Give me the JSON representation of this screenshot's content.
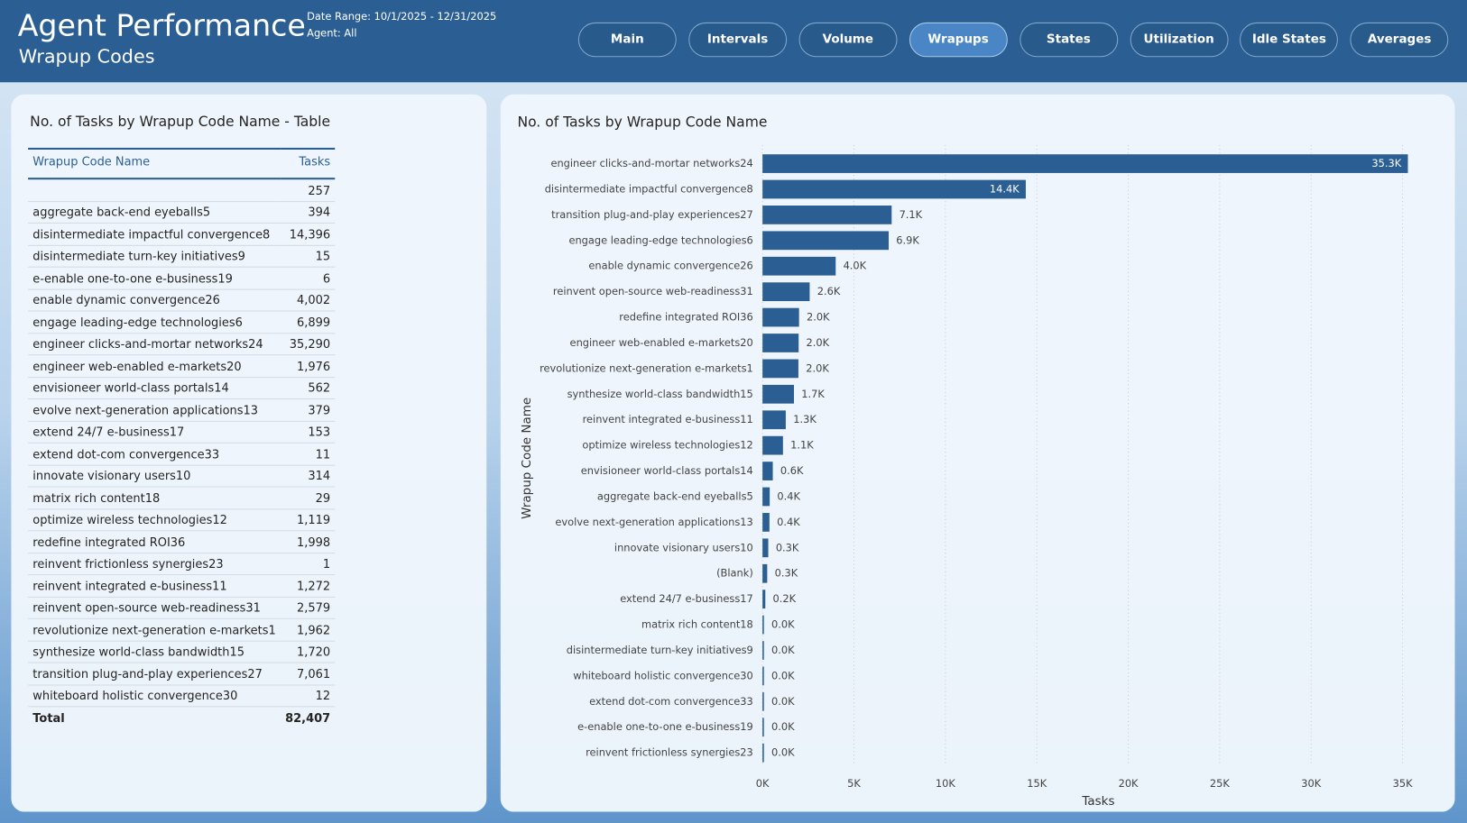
{
  "header": {
    "title": "Agent Performance",
    "subtitle": "Wrapup Codes",
    "date_range": "Date Range: 10/1/2025 - 12/31/2025",
    "agent": "Agent: All"
  },
  "nav": {
    "items": [
      "Main",
      "Intervals",
      "Volume",
      "Wrapups",
      "States",
      "Utilization",
      "Idle States",
      "Averages"
    ],
    "active": "Wrapups"
  },
  "table": {
    "title": "No. of Tasks by Wrapup Code Name - Table",
    "columns": [
      "Wrapup Code Name",
      "Tasks"
    ],
    "rows": [
      [
        null,
        "257"
      ],
      [
        "aggregate back-end eyeballs5",
        "394"
      ],
      [
        "disintermediate impactful convergence8",
        "14,396"
      ],
      [
        "disintermediate turn-key initiatives9",
        "15"
      ],
      [
        "e-enable one-to-one e-business19",
        "6"
      ],
      [
        "enable dynamic convergence26",
        "4,002"
      ],
      [
        "engage leading-edge technologies6",
        "6,899"
      ],
      [
        "engineer clicks-and-mortar networks24",
        "35,290"
      ],
      [
        "engineer web-enabled e-markets20",
        "1,976"
      ],
      [
        "envisioneer world-class portals14",
        "562"
      ],
      [
        "evolve next-generation applications13",
        "379"
      ],
      [
        "extend 24/7 e-business17",
        "153"
      ],
      [
        "extend dot-com convergence33",
        "11"
      ],
      [
        "innovate visionary users10",
        "314"
      ],
      [
        "matrix rich content18",
        "29"
      ],
      [
        "optimize wireless technologies12",
        "1,119"
      ],
      [
        "redefine integrated ROI36",
        "1,998"
      ],
      [
        "reinvent frictionless synergies23",
        "1"
      ],
      [
        "reinvent integrated e-business11",
        "1,272"
      ],
      [
        "reinvent open-source web-readiness31",
        "2,579"
      ],
      [
        "revolutionize next-generation e-markets1",
        "1,962"
      ],
      [
        "synthesize world-class bandwidth15",
        "1,720"
      ],
      [
        "transition plug-and-play experiences27",
        "7,061"
      ],
      [
        "whiteboard holistic convergence30",
        "12"
      ]
    ],
    "total": [
      "Total",
      "82,407"
    ]
  },
  "chart_data": {
    "type": "hbar",
    "title": "No. of Tasks by Wrapup Code Name",
    "x_label": "Tasks",
    "y_label": "Wrapup Code Name",
    "color": "#2b5f93",
    "grid": true,
    "categories": [
      "engineer clicks-and-mortar networks24",
      "disintermediate impactful convergence8",
      "transition plug-and-play experiences27",
      "engage leading-edge technologies6",
      "enable dynamic convergence26",
      "reinvent open-source web-readiness31",
      "redefine integrated ROI36",
      "engineer web-enabled e-markets20",
      "revolutionize next-generation e-markets1",
      "synthesize world-class bandwidth15",
      "reinvent integrated e-business11",
      "optimize wireless technologies12",
      "envisioneer world-class portals14",
      "aggregate back-end eyeballs5",
      "evolve next-generation applications13",
      "innovate visionary users10",
      "(Blank)",
      "extend 24/7 e-business17",
      "matrix rich content18",
      "disintermediate turn-key initiatives9",
      "whiteboard holistic convergence30",
      "extend dot-com convergence33",
      "e-enable one-to-one e-business19",
      "reinvent frictionless synergies23"
    ],
    "values": [
      35290,
      14396,
      7061,
      6899,
      4002,
      2579,
      1998,
      1976,
      1962,
      1720,
      1272,
      1119,
      562,
      394,
      379,
      314,
      257,
      153,
      29,
      15,
      12,
      11,
      6,
      1
    ],
    "value_labels": [
      "35.3K",
      "14.4K",
      "7.1K",
      "6.9K",
      "4.0K",
      "2.6K",
      "2.0K",
      "2.0K",
      "2.0K",
      "1.7K",
      "1.3K",
      "1.1K",
      "0.6K",
      "0.4K",
      "0.4K",
      "0.3K",
      "0.3K",
      "0.2K",
      "0.0K",
      "0.0K",
      "0.0K",
      "0.0K",
      "0.0K",
      "0.0K"
    ],
    "xlim": [
      0,
      35300
    ],
    "xticks": [
      {
        "value": 0,
        "label": "0K"
      },
      {
        "value": 5000,
        "label": "5K"
      },
      {
        "value": 10000,
        "label": "10K"
      },
      {
        "value": 15000,
        "label": "15K"
      },
      {
        "value": 20000,
        "label": "20K"
      },
      {
        "value": 25000,
        "label": "25K"
      },
      {
        "value": 30000,
        "label": "30K"
      },
      {
        "value": 35000,
        "label": "35K"
      }
    ]
  }
}
